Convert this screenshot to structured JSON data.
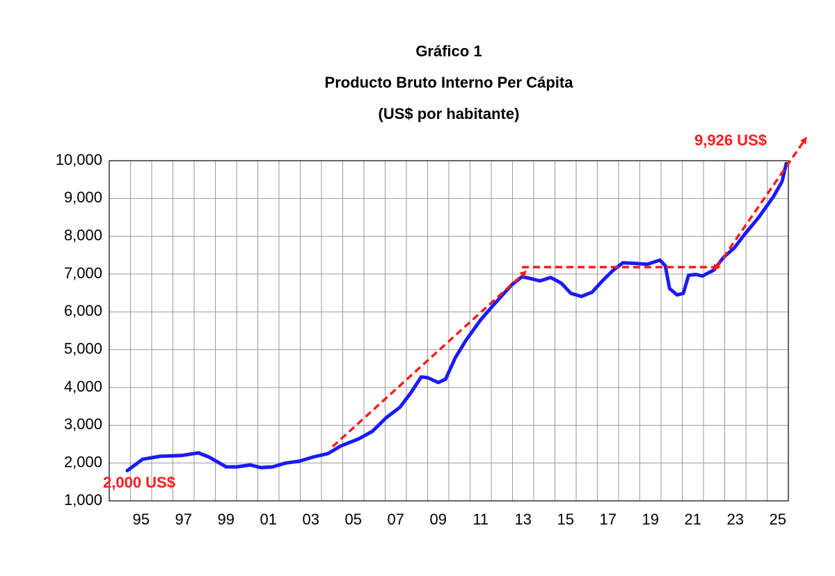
{
  "chart_data": {
    "type": "line",
    "title": "Gráfico 1",
    "subtitle": "Producto Bruto Interno Per Cápita",
    "unit_label": "(US$ por habitante)",
    "annotations": [
      "2,000 US$",
      "9,926 US$"
    ],
    "xlim": [
      1994,
      2026
    ],
    "xticks": [
      {
        "value": 1995.5,
        "label": "95"
      },
      {
        "value": 1997.5,
        "label": "97"
      },
      {
        "value": 1999.5,
        "label": "99"
      },
      {
        "value": 2001.5,
        "label": "01"
      },
      {
        "value": 2003.5,
        "label": "03"
      },
      {
        "value": 2005.5,
        "label": "05"
      },
      {
        "value": 2007.5,
        "label": "07"
      },
      {
        "value": 2009.5,
        "label": "09"
      },
      {
        "value": 2011.5,
        "label": "11"
      },
      {
        "value": 2013.5,
        "label": "13"
      },
      {
        "value": 2015.5,
        "label": "15"
      },
      {
        "value": 2017.5,
        "label": "17"
      },
      {
        "value": 2019.5,
        "label": "19"
      },
      {
        "value": 2021.5,
        "label": "21"
      },
      {
        "value": 2023.5,
        "label": "23"
      },
      {
        "value": 2025.5,
        "label": "25"
      }
    ],
    "xgrid": [
      1995,
      1996,
      1997,
      1998,
      1999,
      2000,
      2001,
      2002,
      2003,
      2004,
      2005,
      2006,
      2007,
      2008,
      2009,
      2010,
      2011,
      2012,
      2013,
      2014,
      2015,
      2016,
      2017,
      2018,
      2019,
      2020,
      2021,
      2022,
      2023,
      2024,
      2025
    ],
    "ylim": [
      1000,
      10000
    ],
    "yticks": [
      {
        "value": 1000,
        "label": "1,000"
      },
      {
        "value": 2000,
        "label": "2,000"
      },
      {
        "value": 3000,
        "label": "3,000"
      },
      {
        "value": 4000,
        "label": "4,000"
      },
      {
        "value": 5000,
        "label": "5,000"
      },
      {
        "value": 6000,
        "label": "6,000"
      },
      {
        "value": 7000,
        "label": "7,000"
      },
      {
        "value": 8000,
        "label": "8,000"
      },
      {
        "value": 9000,
        "label": "9,000"
      },
      {
        "value": 10000,
        "label": "10,000"
      }
    ],
    "grid": true,
    "series": [
      {
        "color": "#1a1aff",
        "x": [
          1994.85,
          1995.57,
          1996.4,
          1997.4,
          1998.2,
          1998.7,
          1999.5,
          2000.0,
          2000.65,
          2001.15,
          2001.7,
          2002.3,
          2002.95,
          2003.6,
          2004.3,
          2004.9,
          2005.75,
          2006.4,
          2007.05,
          2007.7,
          2008.2,
          2008.7,
          2009.0,
          2009.5,
          2009.85,
          2010.3,
          2010.8,
          2011.5,
          2012.15,
          2012.95,
          2013.45,
          2013.8,
          2014.3,
          2014.8,
          2015.3,
          2015.75,
          2016.25,
          2016.75,
          2017.2,
          2017.7,
          2018.2,
          2018.85,
          2019.35,
          2019.95,
          2020.2,
          2020.4,
          2020.75,
          2021.05,
          2021.3,
          2021.65,
          2021.95,
          2022.5,
          2022.95,
          2023.45,
          2023.95,
          2024.6,
          2025.3,
          2025.7,
          2025.9
        ],
        "values": [
          1800,
          2100,
          2180,
          2200,
          2270,
          2160,
          1900,
          1900,
          1950,
          1880,
          1900,
          2000,
          2050,
          2160,
          2250,
          2450,
          2640,
          2840,
          3200,
          3480,
          3850,
          4280,
          4260,
          4130,
          4220,
          4780,
          5240,
          5790,
          6210,
          6710,
          6930,
          6890,
          6820,
          6910,
          6760,
          6490,
          6410,
          6520,
          6800,
          7080,
          7300,
          7280,
          7260,
          7370,
          7220,
          6620,
          6450,
          6490,
          6970,
          6990,
          6950,
          7110,
          7450,
          7690,
          8060,
          8500,
          9050,
          9450,
          9926
        ]
      }
    ]
  }
}
